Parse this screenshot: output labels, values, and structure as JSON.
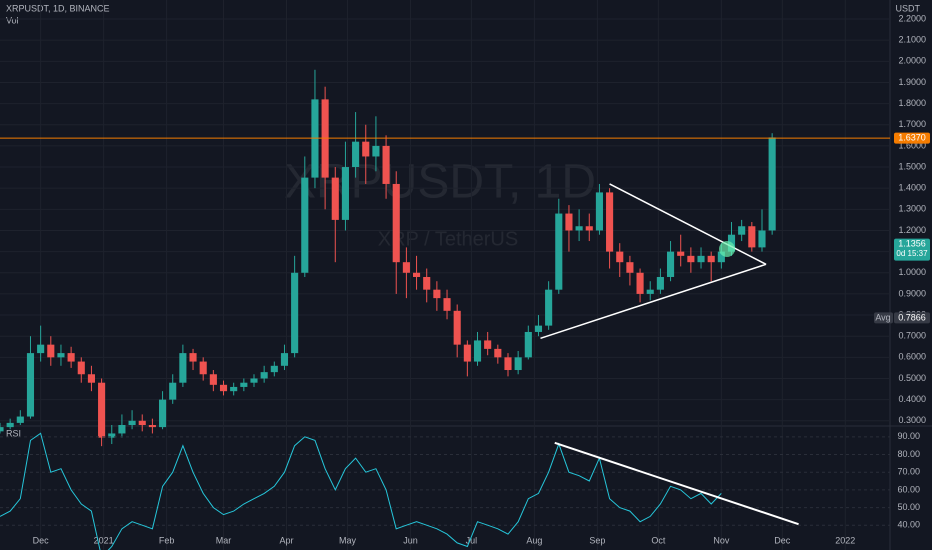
{
  "header": {
    "symbol": "XRPUSDT, 1D, BINANCE",
    "volume_label": "Vol",
    "currency": "USDT",
    "watermark_symbol": "XRPUSDT, 1D",
    "watermark_name": "XRP / TetherUS"
  },
  "chart_data": [
    {
      "type": "candlestick",
      "x": [
        0,
        5,
        10,
        15,
        20,
        25,
        30,
        35,
        40,
        45,
        50,
        55,
        60,
        65,
        70,
        75,
        80,
        85,
        90,
        95,
        100,
        105,
        110,
        115,
        120,
        125,
        130,
        135,
        140,
        145,
        150,
        155,
        160,
        165,
        170,
        175,
        180,
        185,
        190,
        195,
        200,
        205,
        210,
        215,
        220,
        225,
        230,
        235,
        240,
        245,
        250,
        255,
        260,
        265,
        270,
        275,
        280,
        285,
        290,
        295,
        300,
        305,
        310,
        315,
        320,
        325,
        330,
        335,
        340,
        345,
        350,
        355,
        360,
        365,
        370,
        375,
        380
      ],
      "open": [
        0.25,
        0.27,
        0.29,
        0.32,
        0.62,
        0.66,
        0.6,
        0.62,
        0.58,
        0.52,
        0.48,
        0.22,
        0.24,
        0.28,
        0.3,
        0.28,
        0.27,
        0.4,
        0.48,
        0.62,
        0.58,
        0.52,
        0.47,
        0.44,
        0.46,
        0.48,
        0.5,
        0.53,
        0.56,
        0.62,
        1.0,
        1.45,
        1.82,
        1.45,
        1.25,
        1.5,
        1.62,
        1.55,
        1.6,
        1.42,
        1.05,
        1.0,
        0.98,
        0.92,
        0.88,
        0.82,
        0.66,
        0.58,
        0.68,
        0.64,
        0.6,
        0.54,
        0.6,
        0.72,
        0.75,
        0.92,
        1.28,
        1.2,
        1.22,
        1.2,
        1.38,
        1.1,
        1.05,
        1.0,
        0.9,
        0.92,
        0.98,
        1.1,
        1.08,
        1.05,
        1.08,
        1.05,
        1.1,
        1.18,
        1.22,
        1.12,
        1.2
      ],
      "high": [
        0.29,
        0.31,
        0.35,
        0.7,
        0.75,
        0.7,
        0.66,
        0.65,
        0.6,
        0.56,
        0.5,
        0.28,
        0.33,
        0.35,
        0.33,
        0.31,
        0.44,
        0.52,
        0.66,
        0.64,
        0.6,
        0.54,
        0.49,
        0.48,
        0.5,
        0.52,
        0.56,
        0.58,
        0.66,
        1.08,
        1.55,
        1.96,
        1.88,
        1.5,
        1.62,
        1.76,
        1.7,
        1.74,
        1.65,
        1.48,
        1.12,
        1.08,
        1.02,
        0.96,
        0.92,
        0.85,
        0.68,
        0.72,
        0.72,
        0.66,
        0.62,
        0.63,
        0.75,
        0.8,
        0.96,
        1.35,
        1.32,
        1.3,
        1.28,
        1.42,
        1.4,
        1.14,
        1.08,
        1.02,
        0.96,
        1.02,
        1.15,
        1.18,
        1.12,
        1.12,
        1.1,
        1.14,
        1.24,
        1.25,
        1.24,
        1.3,
        1.66
      ],
      "low": [
        0.24,
        0.26,
        0.28,
        0.31,
        0.58,
        0.56,
        0.56,
        0.55,
        0.48,
        0.44,
        0.18,
        0.19,
        0.22,
        0.26,
        0.25,
        0.24,
        0.26,
        0.38,
        0.46,
        0.54,
        0.49,
        0.44,
        0.42,
        0.42,
        0.44,
        0.46,
        0.48,
        0.51,
        0.54,
        0.6,
        0.98,
        1.4,
        1.3,
        1.05,
        1.2,
        1.45,
        1.42,
        1.48,
        1.35,
        0.9,
        0.88,
        0.92,
        0.86,
        0.82,
        0.78,
        0.6,
        0.51,
        0.56,
        0.61,
        0.57,
        0.51,
        0.52,
        0.59,
        0.7,
        0.73,
        0.9,
        1.1,
        1.15,
        1.15,
        1.18,
        1.02,
        0.98,
        0.94,
        0.86,
        0.87,
        0.9,
        0.96,
        1.03,
        1.0,
        1.02,
        0.96,
        1.02,
        1.08,
        1.15,
        1.1,
        1.1,
        1.18
      ],
      "close": [
        0.27,
        0.29,
        0.32,
        0.62,
        0.66,
        0.6,
        0.62,
        0.58,
        0.52,
        0.48,
        0.22,
        0.24,
        0.28,
        0.3,
        0.28,
        0.27,
        0.4,
        0.48,
        0.62,
        0.58,
        0.52,
        0.47,
        0.44,
        0.46,
        0.48,
        0.5,
        0.53,
        0.56,
        0.62,
        1.0,
        1.45,
        1.82,
        1.45,
        1.25,
        1.5,
        1.62,
        1.55,
        1.6,
        1.42,
        1.05,
        1.0,
        0.98,
        0.92,
        0.88,
        0.82,
        0.66,
        0.58,
        0.68,
        0.64,
        0.6,
        0.54,
        0.6,
        0.72,
        0.75,
        0.92,
        1.28,
        1.2,
        1.22,
        1.2,
        1.38,
        1.1,
        1.05,
        1.0,
        0.9,
        0.92,
        0.98,
        1.1,
        1.08,
        1.05,
        1.08,
        1.05,
        1.1,
        1.18,
        1.22,
        1.12,
        1.2,
        1.64
      ],
      "up_color": "#26a69a",
      "down_color": "#ef5350",
      "xlim": [
        0,
        438
      ],
      "xticks": [
        {
          "value": 20,
          "label": "Dec"
        },
        {
          "value": 51,
          "label": "2021"
        },
        {
          "value": 82,
          "label": "Feb"
        },
        {
          "value": 110,
          "label": "Mar"
        },
        {
          "value": 141,
          "label": "Apr"
        },
        {
          "value": 171,
          "label": "May"
        },
        {
          "value": 202,
          "label": "Jun"
        },
        {
          "value": 232,
          "label": "Jul"
        },
        {
          "value": 263,
          "label": "Aug"
        },
        {
          "value": 294,
          "label": "Sep"
        },
        {
          "value": 324,
          "label": "Oct"
        },
        {
          "value": 355,
          "label": "Nov"
        },
        {
          "value": 385,
          "label": "Dec"
        },
        {
          "value": 416,
          "label": "2022"
        }
      ],
      "ylim": [
        0.28,
        2.29
      ],
      "yticks": [
        {
          "value": 0.3,
          "label": "0.3000"
        },
        {
          "value": 0.4,
          "label": "0.4000"
        },
        {
          "value": 0.5,
          "label": "0.5000"
        },
        {
          "value": 0.6,
          "label": "0.6000"
        },
        {
          "value": 0.7,
          "label": "0.7000"
        },
        {
          "value": 0.8,
          "label": "0.8000"
        },
        {
          "value": 0.9,
          "label": "0.9000"
        },
        {
          "value": 1.0,
          "label": "1.0000"
        },
        {
          "value": 1.1,
          "label": "1.1000"
        },
        {
          "value": 1.2,
          "label": "1.2000"
        },
        {
          "value": 1.3,
          "label": "1.3000"
        },
        {
          "value": 1.4,
          "label": "1.4000"
        },
        {
          "value": 1.5,
          "label": "1.5000"
        },
        {
          "value": 1.6,
          "label": "1.6000"
        },
        {
          "value": 1.7,
          "label": "1.7000"
        },
        {
          "value": 1.8,
          "label": "1.8000"
        },
        {
          "value": 1.9,
          "label": "1.9000"
        },
        {
          "value": 2.0,
          "label": "2.0000"
        },
        {
          "value": 2.1,
          "label": "2.1000"
        },
        {
          "value": 2.2,
          "label": "2.2000"
        }
      ],
      "price_lines": [
        {
          "value": 1.637,
          "label": "1.6370",
          "color": "#f57c00"
        },
        {
          "value": 1.1356,
          "label": "1.1356",
          "sublabel": "0d 15:37",
          "color": "#26a69a"
        },
        {
          "value": 0.7866,
          "label": "0.7866",
          "tag": "Avg",
          "color": "#363a45"
        }
      ],
      "trend_lines": [
        {
          "x": [
            266,
            377
          ],
          "y": [
            0.69,
            1.04
          ]
        },
        {
          "x": [
            300,
            377
          ],
          "y": [
            1.42,
            1.04
          ]
        }
      ]
    },
    {
      "type": "line",
      "title": "RSI",
      "color": "#26c6da",
      "x": [
        0,
        5,
        10,
        15,
        20,
        25,
        30,
        35,
        40,
        45,
        50,
        55,
        60,
        65,
        70,
        75,
        80,
        85,
        90,
        95,
        100,
        105,
        110,
        115,
        120,
        125,
        130,
        135,
        140,
        145,
        150,
        155,
        160,
        165,
        170,
        175,
        180,
        185,
        190,
        195,
        200,
        205,
        210,
        215,
        220,
        225,
        230,
        235,
        240,
        245,
        250,
        255,
        260,
        265,
        270,
        275,
        280,
        285,
        290,
        295,
        300,
        305,
        310,
        315,
        320,
        325,
        330,
        335,
        340,
        345,
        350,
        355,
        360,
        365,
        370,
        375,
        380
      ],
      "values": [
        45,
        48,
        55,
        88,
        92,
        70,
        72,
        60,
        52,
        48,
        22,
        28,
        38,
        42,
        40,
        38,
        62,
        70,
        85,
        70,
        58,
        50,
        46,
        48,
        52,
        55,
        58,
        62,
        70,
        85,
        90,
        88,
        72,
        60,
        72,
        78,
        70,
        72,
        60,
        38,
        40,
        42,
        40,
        38,
        35,
        30,
        28,
        42,
        40,
        38,
        35,
        42,
        55,
        58,
        70,
        86,
        70,
        68,
        65,
        78,
        55,
        50,
        48,
        42,
        45,
        52,
        62,
        60,
        55,
        58,
        52,
        58,
        null,
        null,
        null,
        null,
        null
      ],
      "xlim": [
        0,
        438
      ],
      "ylim": [
        26,
        95
      ],
      "yticks": [
        {
          "value": 40,
          "label": "40.00"
        },
        {
          "value": 50,
          "label": "50.00"
        },
        {
          "value": 60,
          "label": "60.00"
        },
        {
          "value": 70,
          "label": "70.00"
        },
        {
          "value": 80,
          "label": "80.00"
        },
        {
          "value": 90,
          "label": "90.00"
        }
      ],
      "trend_lines": [
        {
          "x": [
            273,
            393
          ],
          "y": [
            86.6,
            40.6
          ]
        }
      ]
    }
  ]
}
